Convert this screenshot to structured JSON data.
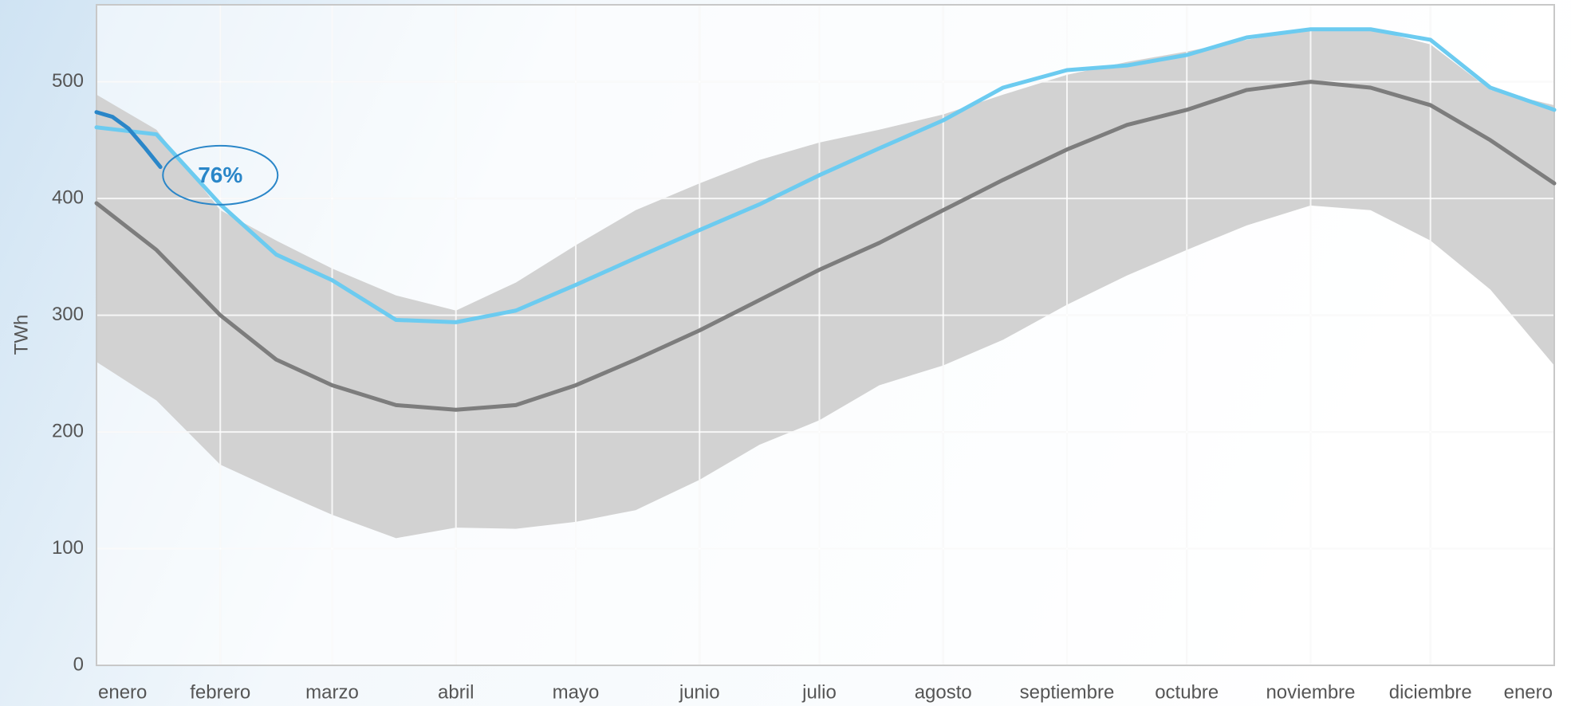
{
  "chart_data": {
    "type": "line",
    "y_label": "TWh",
    "x": [
      0,
      15,
      31,
      45,
      59,
      75,
      90,
      105,
      120,
      135,
      151,
      166,
      181,
      196,
      212,
      227,
      243,
      258,
      273,
      288,
      304,
      319,
      334,
      349,
      365
    ],
    "xlim": [
      0,
      365
    ],
    "xticks": [
      {
        "value": 0,
        "label": "enero"
      },
      {
        "value": 31,
        "label": "febrero"
      },
      {
        "value": 59,
        "label": "marzo"
      },
      {
        "value": 90,
        "label": "abril"
      },
      {
        "value": 120,
        "label": "mayo"
      },
      {
        "value": 151,
        "label": "junio"
      },
      {
        "value": 181,
        "label": "julio"
      },
      {
        "value": 212,
        "label": "agosto"
      },
      {
        "value": 243,
        "label": "septiembre"
      },
      {
        "value": 273,
        "label": "octubre"
      },
      {
        "value": 304,
        "label": "noviembre"
      },
      {
        "value": 334,
        "label": "diciembre"
      },
      {
        "value": 365,
        "label": "enero"
      }
    ],
    "ylim": [
      0,
      566
    ],
    "yticks": [
      0,
      100,
      200,
      300,
      400,
      500
    ],
    "grid": true,
    "band": {
      "color": "#d2d2d2",
      "high": [
        489,
        459,
        390,
        364,
        340,
        317,
        304,
        328,
        360,
        390,
        413,
        433,
        448,
        459,
        472,
        489,
        506,
        517,
        526,
        536,
        545,
        545,
        532,
        493,
        480
      ],
      "low": [
        260,
        227,
        172,
        150,
        129,
        109,
        118,
        117,
        123,
        133,
        159,
        189,
        210,
        240,
        257,
        279,
        309,
        334,
        356,
        377,
        394,
        390,
        364,
        322,
        257
      ]
    },
    "series": [
      {
        "color": "#7d7d7d",
        "values": [
          396,
          356,
          300,
          262,
          240,
          223,
          219,
          223,
          240,
          262,
          287,
          313,
          339,
          362,
          390,
          416,
          442,
          463,
          476,
          493,
          500,
          495,
          480,
          450,
          413
        ]
      },
      {
        "color": "#6ccbf0",
        "values": [
          461,
          455,
          395,
          352,
          330,
          296,
          294,
          304,
          326,
          349,
          373,
          395,
          420,
          443,
          467,
          495,
          510,
          514,
          523,
          538,
          545,
          545,
          536,
          495,
          476
        ]
      },
      {
        "color": "#2a86c8",
        "x": [
          0,
          4,
          8,
          12,
          16
        ],
        "values": [
          474,
          470,
          460,
          444,
          427
        ]
      }
    ],
    "annotations": [
      {
        "text": "76%",
        "color": "#2a86c8"
      }
    ]
  }
}
